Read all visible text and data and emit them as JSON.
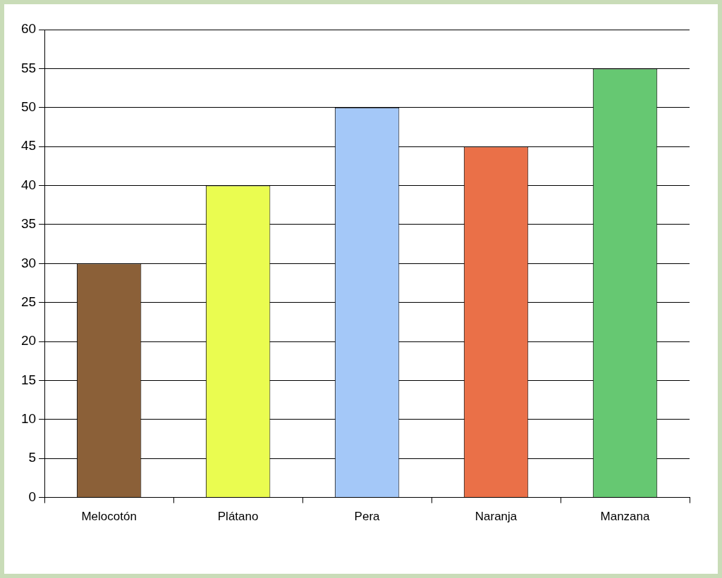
{
  "chart_data": {
    "type": "bar",
    "categories": [
      "Melocotón",
      "Plátano",
      "Pera",
      "Naranja",
      "Manzana"
    ],
    "values": [
      30,
      40,
      50,
      45,
      55
    ],
    "colors": [
      "#8b6038",
      "#eafc50",
      "#a4c8f8",
      "#ea7048",
      "#66c872"
    ],
    "ylim": [
      0,
      60
    ],
    "yticks": [
      0,
      5,
      10,
      15,
      20,
      25,
      30,
      35,
      40,
      45,
      50,
      55,
      60
    ],
    "grid": "y",
    "legend": false
  }
}
